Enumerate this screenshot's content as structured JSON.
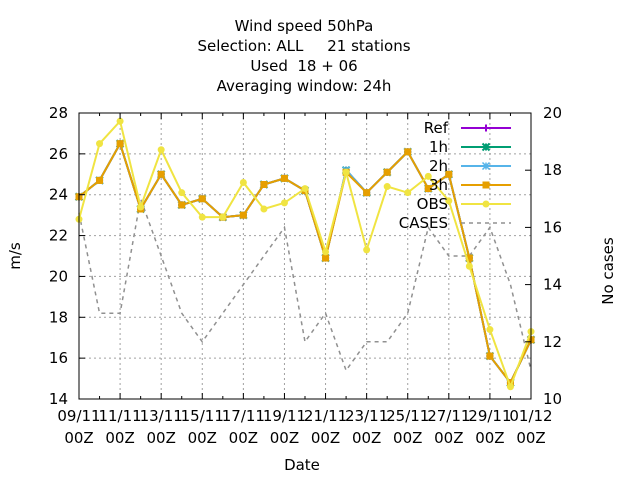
{
  "chart_data": {
    "type": "line",
    "title_lines": [
      "Wind speed 50hPa",
      "Selection: ALL     21 stations",
      "Used  18 + 06",
      "Averaging window: 24h"
    ],
    "xlabel": "Date",
    "ylabel": "m/s",
    "y2label": "No cases",
    "ylim": [
      14,
      28
    ],
    "y2lim": [
      10,
      20
    ],
    "yticks": [
      14,
      16,
      18,
      20,
      22,
      24,
      26,
      28
    ],
    "y2ticks": [
      10,
      12,
      14,
      16,
      18,
      20
    ],
    "xticks": [
      {
        "day": 0,
        "label1": "09/11",
        "label2": "00Z"
      },
      {
        "day": 2,
        "label1": "11/11",
        "label2": "00Z"
      },
      {
        "day": 4,
        "label1": "13/11",
        "label2": "00Z"
      },
      {
        "day": 6,
        "label1": "15/11",
        "label2": "00Z"
      },
      {
        "day": 8,
        "label1": "17/11",
        "label2": "00Z"
      },
      {
        "day": 10,
        "label1": "19/11",
        "label2": "00Z"
      },
      {
        "day": 12,
        "label1": "21/11",
        "label2": "00Z"
      },
      {
        "day": 14,
        "label1": "23/11",
        "label2": "00Z"
      },
      {
        "day": 16,
        "label1": "25/11",
        "label2": "00Z"
      },
      {
        "day": 18,
        "label1": "27/11",
        "label2": "00Z"
      },
      {
        "day": 20,
        "label1": "29/11",
        "label2": "00Z"
      },
      {
        "day": 22,
        "label1": "01/12",
        "label2": "00Z"
      }
    ],
    "xlim": [
      0,
      22
    ],
    "grid": true,
    "legend_position": "top-right",
    "series": [
      {
        "name": "Ref",
        "color": "#9400d3",
        "marker": "plus",
        "axis": "y1",
        "x": [
          0,
          1,
          2,
          3,
          4,
          5,
          6,
          7,
          8,
          9,
          10,
          11,
          12,
          13,
          14,
          15,
          16,
          17,
          18,
          19,
          20,
          21,
          22
        ],
        "y": [
          23.9,
          24.7,
          26.5,
          23.3,
          25.0,
          23.5,
          23.8,
          22.9,
          23.0,
          24.5,
          24.8,
          24.2,
          20.9,
          25.2,
          24.1,
          25.1,
          26.1,
          24.3,
          25.0,
          20.9,
          16.1,
          14.8,
          16.9
        ]
      },
      {
        "name": "1h",
        "color": "#009e73",
        "marker": "cross",
        "axis": "y1",
        "x": [
          0,
          1,
          2,
          3,
          4,
          5,
          6,
          7,
          8,
          9,
          10,
          11,
          12,
          13,
          14,
          15,
          16,
          17,
          18,
          19,
          20,
          21,
          22
        ],
        "y": [
          23.9,
          24.7,
          26.5,
          23.3,
          25.0,
          23.5,
          23.8,
          22.9,
          23.0,
          24.5,
          24.8,
          24.2,
          20.9,
          25.2,
          24.1,
          25.1,
          26.1,
          24.3,
          25.0,
          20.9,
          16.1,
          14.8,
          16.9
        ]
      },
      {
        "name": "2h",
        "color": "#56b4e9",
        "marker": "star",
        "axis": "y1",
        "x": [
          0,
          1,
          2,
          3,
          4,
          5,
          6,
          7,
          8,
          9,
          10,
          11,
          12,
          13,
          14,
          15,
          16,
          17,
          18,
          19,
          20,
          21,
          22
        ],
        "y": [
          23.9,
          24.7,
          26.5,
          23.3,
          25.0,
          23.5,
          23.8,
          22.9,
          23.0,
          24.5,
          24.8,
          24.2,
          20.9,
          25.2,
          24.1,
          25.1,
          26.1,
          24.3,
          25.0,
          20.9,
          16.1,
          14.8,
          16.9
        ]
      },
      {
        "name": "3h",
        "color": "#e69f00",
        "marker": "square",
        "axis": "y1",
        "x": [
          0,
          1,
          2,
          3,
          4,
          5,
          6,
          7,
          8,
          9,
          10,
          11,
          12,
          13,
          14,
          15,
          16,
          17,
          18,
          19,
          20,
          21,
          22
        ],
        "y": [
          23.9,
          24.7,
          26.5,
          23.3,
          25.0,
          23.5,
          23.8,
          22.9,
          23.0,
          24.5,
          24.8,
          24.2,
          20.9,
          25.1,
          24.1,
          25.1,
          26.1,
          24.3,
          25.0,
          20.9,
          16.1,
          14.8,
          16.9
        ]
      },
      {
        "name": "OBS",
        "color": "#f0e442",
        "marker": "circle",
        "axis": "y1",
        "x": [
          0,
          1,
          2,
          3,
          4,
          5,
          6,
          7,
          8,
          9,
          10,
          11,
          12,
          13,
          14,
          15,
          16,
          17,
          18,
          19,
          20,
          21,
          22
        ],
        "y": [
          22.8,
          26.5,
          27.6,
          23.4,
          26.2,
          24.1,
          22.9,
          22.9,
          24.6,
          23.3,
          23.6,
          24.3,
          21.2,
          25.1,
          21.3,
          24.4,
          24.1,
          24.9,
          23.7,
          20.5,
          17.4,
          14.6,
          17.3
        ]
      },
      {
        "name": "CASES",
        "color": "#909090",
        "marker": "none",
        "dash": true,
        "axis": "y2",
        "x": [
          0,
          1,
          2,
          3,
          4,
          5,
          6,
          7,
          8,
          9,
          10,
          11,
          12,
          13,
          14,
          15,
          16,
          17,
          18,
          19,
          20,
          21,
          22
        ],
        "y": [
          16.5,
          13.0,
          13.0,
          17.0,
          15.0,
          13.0,
          12.0,
          13.0,
          14.0,
          15.0,
          16.0,
          12.0,
          13.0,
          11.0,
          12.0,
          12.0,
          13.0,
          16.0,
          15.0,
          15.0,
          16.0,
          14.0,
          11.0
        ]
      }
    ]
  }
}
